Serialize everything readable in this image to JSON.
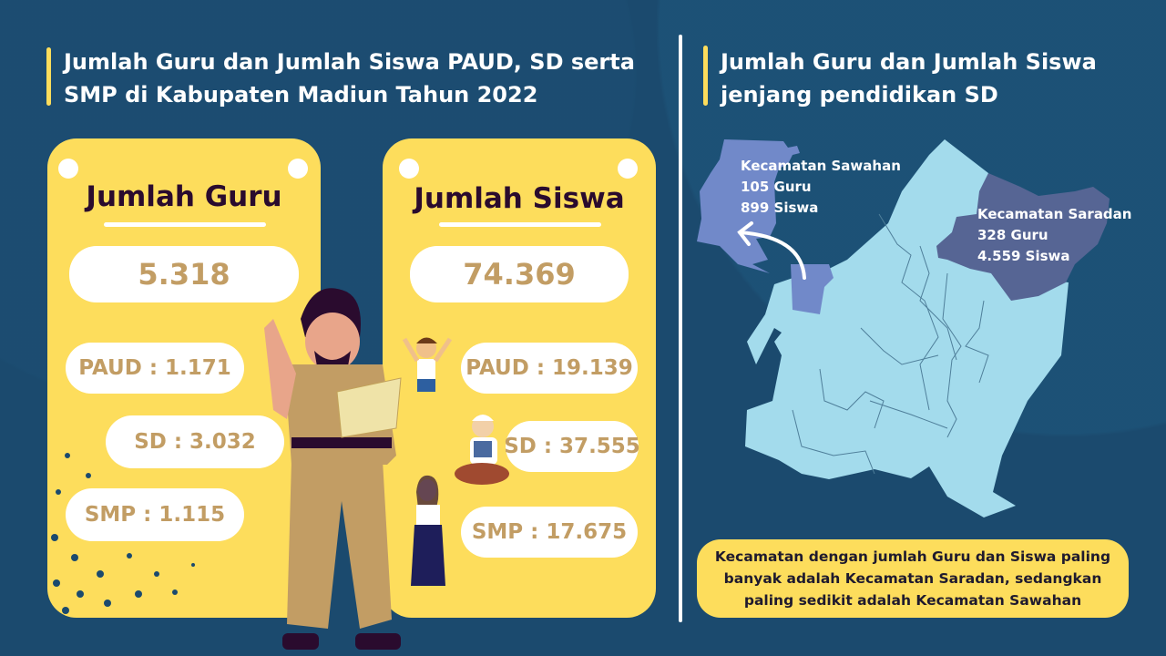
{
  "colors": {
    "background": "#1b4a6e",
    "card": "#fddd5c",
    "value_text": "#c29d64",
    "card_title": "#2a0b2e",
    "map_base": "#a3dbec",
    "map_sawahan": "#7189c9",
    "map_saradan": "#566594"
  },
  "left_section": {
    "title_line1": "Jumlah Guru dan Jumlah Siswa PAUD, SD serta",
    "title_line2": "SMP di Kabupaten Madiun Tahun 2022"
  },
  "guru_card": {
    "title": "Jumlah Guru",
    "total": "5.318",
    "paud": "PAUD : 1.171",
    "sd": "SD : 3.032",
    "smp": "SMP : 1.115"
  },
  "siswa_card": {
    "title": "Jumlah Siswa",
    "total": "74.369",
    "paud": "PAUD : 19.139",
    "sd": "SD : 37.555",
    "smp": "SMP : 17.675"
  },
  "right_section": {
    "title_line1": "Jumlah Guru dan Jumlah Siswa",
    "title_line2": "jenjang pendidikan SD"
  },
  "map": {
    "sawahan": {
      "name": "Kecamatan Sawahan",
      "guru": "105 Guru",
      "siswa": "899 Siswa"
    },
    "saradan": {
      "name": "Kecamatan Saradan",
      "guru": "328 Guru",
      "siswa": "4.559 Siswa"
    }
  },
  "note": "Kecamatan dengan jumlah Guru dan Siswa paling banyak adalah Kecamatan Saradan, sedangkan paling sedikit adalah Kecamatan Sawahan"
}
